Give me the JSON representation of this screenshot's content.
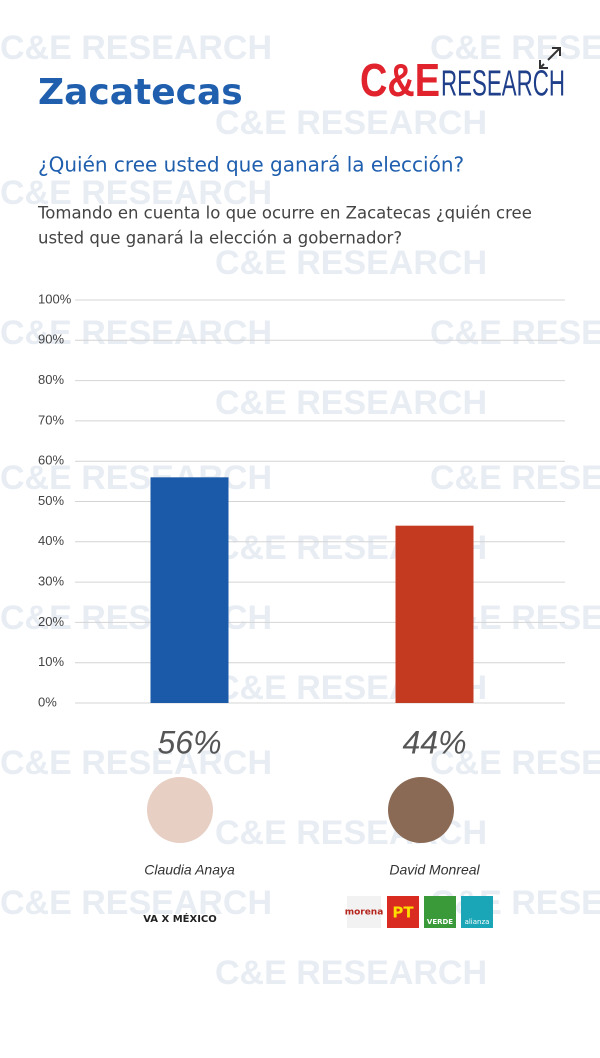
{
  "header": {
    "title": "Zacatecas",
    "logo": {
      "mark": "C&E",
      "word": "RESEARCH"
    },
    "watermark": "C&E RESEARCH"
  },
  "chart_data": {
    "type": "bar",
    "title": "¿Quién cree usted que ganará la elección?",
    "subtitle": [
      "Tomando en cuenta lo que ocurre en Zacatecas ¿quién cree",
      "usted que ganará la elección a gobernador?"
    ],
    "categories": [
      "Claudia Anaya",
      "David Monreal"
    ],
    "values": [
      56,
      44
    ],
    "value_labels": [
      "56%",
      "44%"
    ],
    "colors": [
      "#1b5aa8",
      "#c43a20"
    ],
    "ylim": [
      0,
      100
    ],
    "yticks": [
      {
        "value": 0,
        "label": "0%"
      },
      {
        "value": 10,
        "label": "10%"
      },
      {
        "value": 20,
        "label": "20%"
      },
      {
        "value": 30,
        "label": "30%"
      },
      {
        "value": 40,
        "label": "40%"
      },
      {
        "value": 50,
        "label": "50%"
      },
      {
        "value": 60,
        "label": "60%"
      },
      {
        "value": 70,
        "label": "70%"
      },
      {
        "value": 80,
        "label": "80%"
      },
      {
        "value": 90,
        "label": "90%"
      },
      {
        "value": 100,
        "label": "100%"
      }
    ],
    "grid": true
  },
  "parties": [
    [
      "VA X MÉXICO"
    ],
    [
      "morena",
      "PT",
      "VERDE",
      "alianza"
    ]
  ]
}
